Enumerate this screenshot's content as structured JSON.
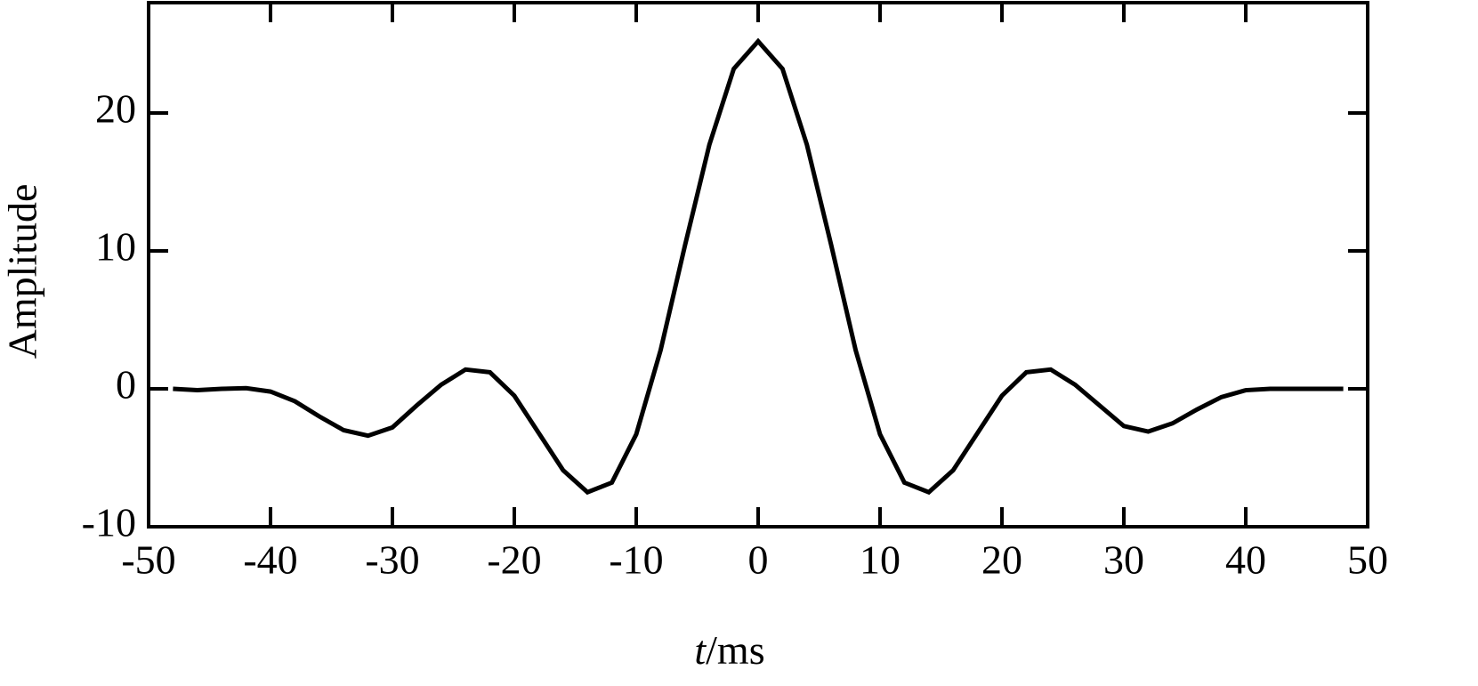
{
  "chart_data": {
    "type": "line",
    "xlabel": "t/ms",
    "ylabel": "Amplitude",
    "x": [
      -48,
      -46,
      -44,
      -42,
      -40,
      -38,
      -36,
      -34,
      -32,
      -30,
      -28,
      -26,
      -24,
      -22,
      -20,
      -18,
      -16,
      -14,
      -12,
      -10,
      -8,
      -6,
      -4,
      -2,
      0,
      2,
      4,
      6,
      8,
      10,
      12,
      14,
      16,
      18,
      20,
      22,
      24,
      26,
      28,
      30,
      32,
      34,
      36,
      38,
      40,
      42,
      44,
      46,
      48
    ],
    "series": [
      {
        "color": "#000000",
        "values": [
          0,
          -0.1,
          0,
          0.05,
          -0.2,
          -0.9,
          -2,
          -3,
          -3.4,
          -2.8,
          -1.2,
          0.3,
          1.4,
          1.2,
          -0.5,
          -3.2,
          -5.9,
          -7.5,
          -6.8,
          -3.3,
          2.8,
          10.4,
          17.7,
          23.2,
          25.2,
          23.2,
          17.7,
          10.4,
          2.8,
          -3.3,
          -6.8,
          -7.5,
          -5.9,
          -3.2,
          -0.5,
          1.2,
          1.4,
          0.3,
          -1.2,
          -2.7,
          -3.1,
          -2.5,
          -1.5,
          -0.6,
          -0.1,
          0,
          0,
          0,
          0
        ]
      }
    ],
    "xlim": [
      -50,
      50
    ],
    "xticks": [
      -50,
      -40,
      -30,
      -20,
      -10,
      0,
      10,
      20,
      30,
      40,
      50
    ],
    "ylim": [
      -10,
      28
    ],
    "yticks": [
      -10,
      0,
      10,
      20
    ]
  }
}
